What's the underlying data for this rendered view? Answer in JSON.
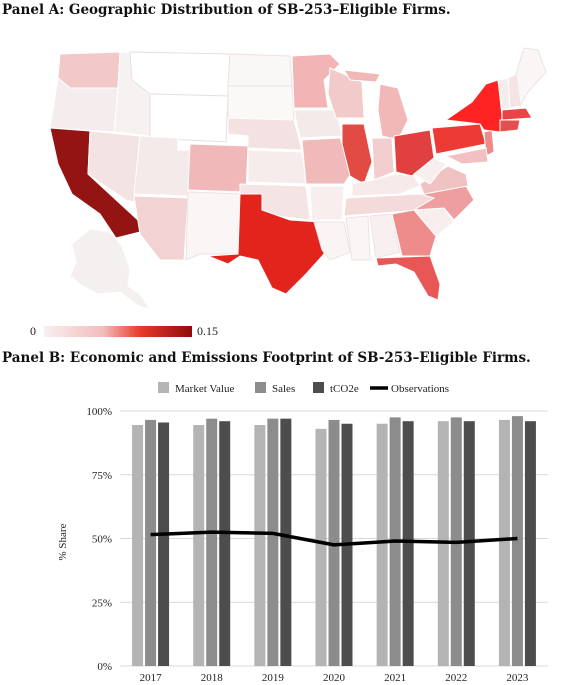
{
  "panel_a": {
    "title": "Panel A: Geographic Distribution of SB-253–Eligible Firms.",
    "colorbar_min": "0",
    "colorbar_max": "0.15",
    "color_low": "#f7f0f0",
    "color_high": "#8f0b0b"
  },
  "panel_b": {
    "title": "Panel B: Economic and Emissions Footprint of SB-253–Eligible Firms."
  },
  "chart_data": {
    "type": "bar",
    "categories": [
      "2017",
      "2018",
      "2019",
      "2020",
      "2021",
      "2022",
      "2023"
    ],
    "series": [
      {
        "name": "Market Value",
        "type": "bar",
        "color": "#b4b4b4",
        "values": [
          94.5,
          94.5,
          94.5,
          93.0,
          95.0,
          96.0,
          96.5
        ]
      },
      {
        "name": "Sales",
        "type": "bar",
        "color": "#8c8c8c",
        "values": [
          96.5,
          97.0,
          97.0,
          96.5,
          97.5,
          97.5,
          98.0
        ]
      },
      {
        "name": "tCO2e",
        "type": "bar",
        "color": "#4d4d4d",
        "values": [
          95.5,
          96.0,
          97.0,
          95.0,
          96.0,
          96.0,
          96.0
        ]
      },
      {
        "name": "Observations",
        "type": "line",
        "color": "#000000",
        "values": [
          51.5,
          52.5,
          52.0,
          47.5,
          49.0,
          48.5,
          50.0
        ]
      }
    ],
    "ylabel": "% Share",
    "ylim": [
      0,
      100
    ],
    "yticks": [
      "0%",
      "25%",
      "50%",
      "75%",
      "100%"
    ],
    "grid": true,
    "legend_position": "top"
  }
}
